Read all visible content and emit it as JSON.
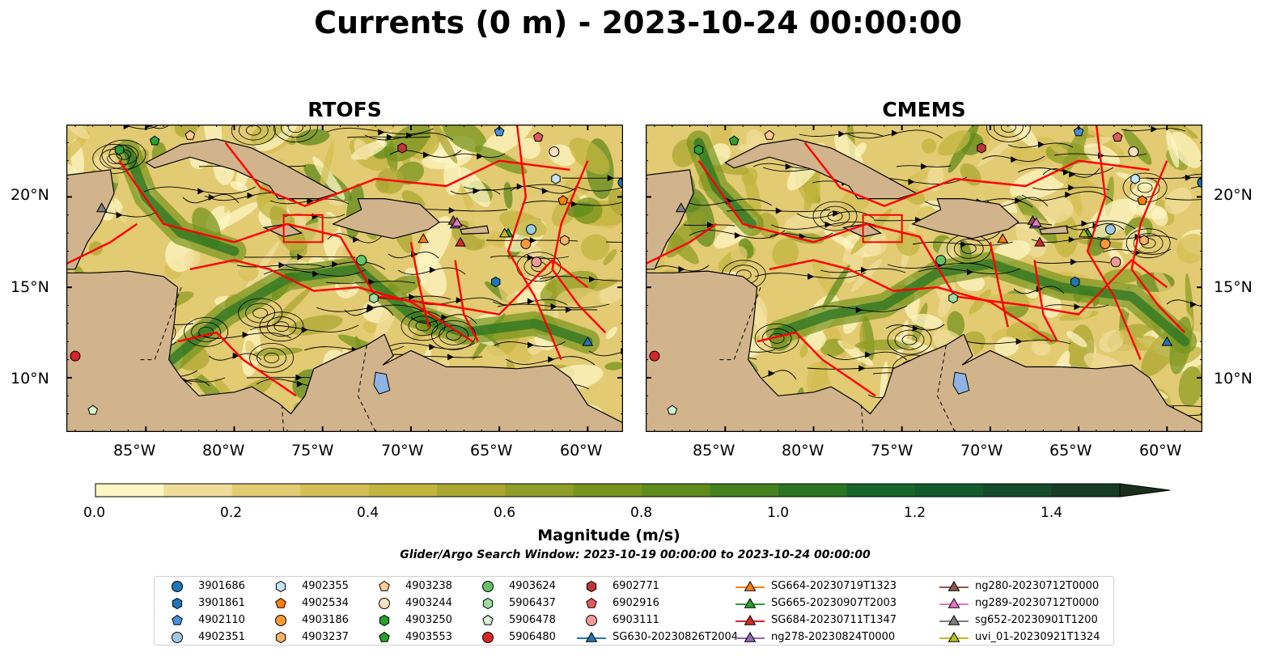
{
  "title": "Currents (0 m) - 2023-10-24 00:00:00",
  "panels": [
    {
      "title": "RTOFS",
      "variant": 0
    },
    {
      "title": "CMEMS",
      "variant": 1
    }
  ],
  "map": {
    "lon_range": [
      -89.5,
      -58
    ],
    "lat_range": [
      7,
      24
    ],
    "lon_ticks": [
      "85°W",
      "80°W",
      "75°W",
      "70°W",
      "65°W",
      "60°W"
    ],
    "lat_ticks": [
      "20°N",
      "15°N",
      "10°N"
    ],
    "land_color": "#d2b48c",
    "eez_color": "#ff0000",
    "streamline_color": "#000000",
    "lake_color": "#8fb4e3"
  },
  "colorbar": {
    "label": "Magnitude (m/s)",
    "ticks": [
      "0.0",
      "0.2",
      "0.4",
      "0.6",
      "0.8",
      "1.0",
      "1.2",
      "1.4"
    ],
    "tick_values": [
      0,
      0.2,
      0.4,
      0.6,
      0.8,
      1.0,
      1.2,
      1.4
    ],
    "range": [
      0,
      1.5
    ],
    "extend": "max",
    "colors": [
      "#fdf5c4",
      "#f0dd9a",
      "#e2cb72",
      "#d5bf55",
      "#c2b43f",
      "#aca733",
      "#8f9e26",
      "#77941e",
      "#5f8a1c",
      "#44811f",
      "#2a7423",
      "#176628",
      "#135a2a",
      "#144b2a",
      "#173c25",
      "#1b2e1b"
    ]
  },
  "search_window": "Glider/Argo Search Window: 2023-10-19 00:00:00 to 2023-10-24 00:00:00",
  "platforms": [
    {
      "id": "3901686",
      "marker": "circle",
      "color": "#1f77b4",
      "lon": -58,
      "lat": 20.8
    },
    {
      "id": "3901861",
      "marker": "hexagon",
      "color": "#1f77b4",
      "lon": -65.2,
      "lat": 15.3
    },
    {
      "id": "4902110",
      "marker": "pentagon",
      "color": "#4a90d9",
      "lon": -65,
      "lat": 23.6
    },
    {
      "id": "4902351",
      "marker": "circle",
      "color": "#9ecae1",
      "lon": -63.2,
      "lat": 18.2
    },
    {
      "id": "4902355",
      "marker": "hexagon",
      "color": "#c6e2f7",
      "lon": -61.8,
      "lat": 21.0
    },
    {
      "id": "4902534",
      "marker": "pentagon",
      "color": "#ff7f0e",
      "lon": -61.4,
      "lat": 19.8
    },
    {
      "id": "4903186",
      "marker": "circle",
      "color": "#ff9933",
      "lon": -63.5,
      "lat": 17.4
    },
    {
      "id": "4903237",
      "marker": "hexagon",
      "color": "#ffb366",
      "lon": -61.3,
      "lat": 17.6
    },
    {
      "id": "4903238",
      "marker": "pentagon",
      "color": "#ffcc99",
      "lon": -82.5,
      "lat": 23.4
    },
    {
      "id": "4903244",
      "marker": "circle",
      "color": "#ffe0c2",
      "lon": -61.9,
      "lat": 22.5
    },
    {
      "id": "4903250",
      "marker": "hexagon",
      "color": "#2ca02c",
      "lon": -86.5,
      "lat": 22.6
    },
    {
      "id": "4903553",
      "marker": "pentagon",
      "color": "#2ca02c",
      "lon": -84.5,
      "lat": 23.1
    },
    {
      "id": "4903624",
      "marker": "circle",
      "color": "#66c266",
      "lon": -72.8,
      "lat": 16.5
    },
    {
      "id": "5906437",
      "marker": "hexagon",
      "color": "#a1dca1",
      "lon": -72.1,
      "lat": 14.4
    },
    {
      "id": "5906478",
      "marker": "pentagon",
      "color": "#d4f2d4",
      "lon": -88,
      "lat": 8.2
    },
    {
      "id": "5906480",
      "marker": "circle",
      "color": "#d62728",
      "lon": -89,
      "lat": 11.2
    },
    {
      "id": "6902771",
      "marker": "hexagon",
      "color": "#c03636",
      "lon": -70.5,
      "lat": 22.7
    },
    {
      "id": "6902916",
      "marker": "pentagon",
      "color": "#e05c5c",
      "lon": -62.8,
      "lat": 23.3
    },
    {
      "id": "6903111",
      "marker": "circle",
      "color": "#f29a9a",
      "lon": -62.9,
      "lat": 16.4
    },
    {
      "id": "SG630-20230826T2004",
      "marker": "triangle",
      "color": "#1f77b4",
      "lon": -60,
      "lat": 12,
      "line": true
    },
    {
      "id": "SG664-20230719T1323",
      "marker": "triangle",
      "color": "#ff7f0e",
      "lon": -69.3,
      "lat": 17.7,
      "line": true
    },
    {
      "id": "SG665-20230907T2003",
      "marker": "triangle",
      "color": "#2ca02c",
      "lon": -64.5,
      "lat": 18.0,
      "line": true
    },
    {
      "id": "SG684-20230711T1347",
      "marker": "triangle",
      "color": "#d62728",
      "lon": -67.2,
      "lat": 17.5,
      "line": true
    },
    {
      "id": "ng278-20230824T0000",
      "marker": "triangle",
      "color": "#9467bd",
      "lon": -67.5,
      "lat": 18.5,
      "line": true
    },
    {
      "id": "ng280-20230712T0000",
      "marker": "triangle",
      "color": "#8c564b",
      "lon": -67.6,
      "lat": 18.7,
      "line": true
    },
    {
      "id": "ng289-20230712T0000",
      "marker": "triangle",
      "color": "#e377c2",
      "lon": -67.4,
      "lat": 18.6,
      "line": true
    },
    {
      "id": "sg652-20230901T1200",
      "marker": "triangle",
      "color": "#7f7f7f",
      "lon": -87.5,
      "lat": 19.4,
      "line": true
    },
    {
      "id": "uvi_01-20230921T1324",
      "marker": "triangle",
      "color": "#bcbd22",
      "lon": -64.7,
      "lat": 18.0,
      "line": true
    }
  ]
}
